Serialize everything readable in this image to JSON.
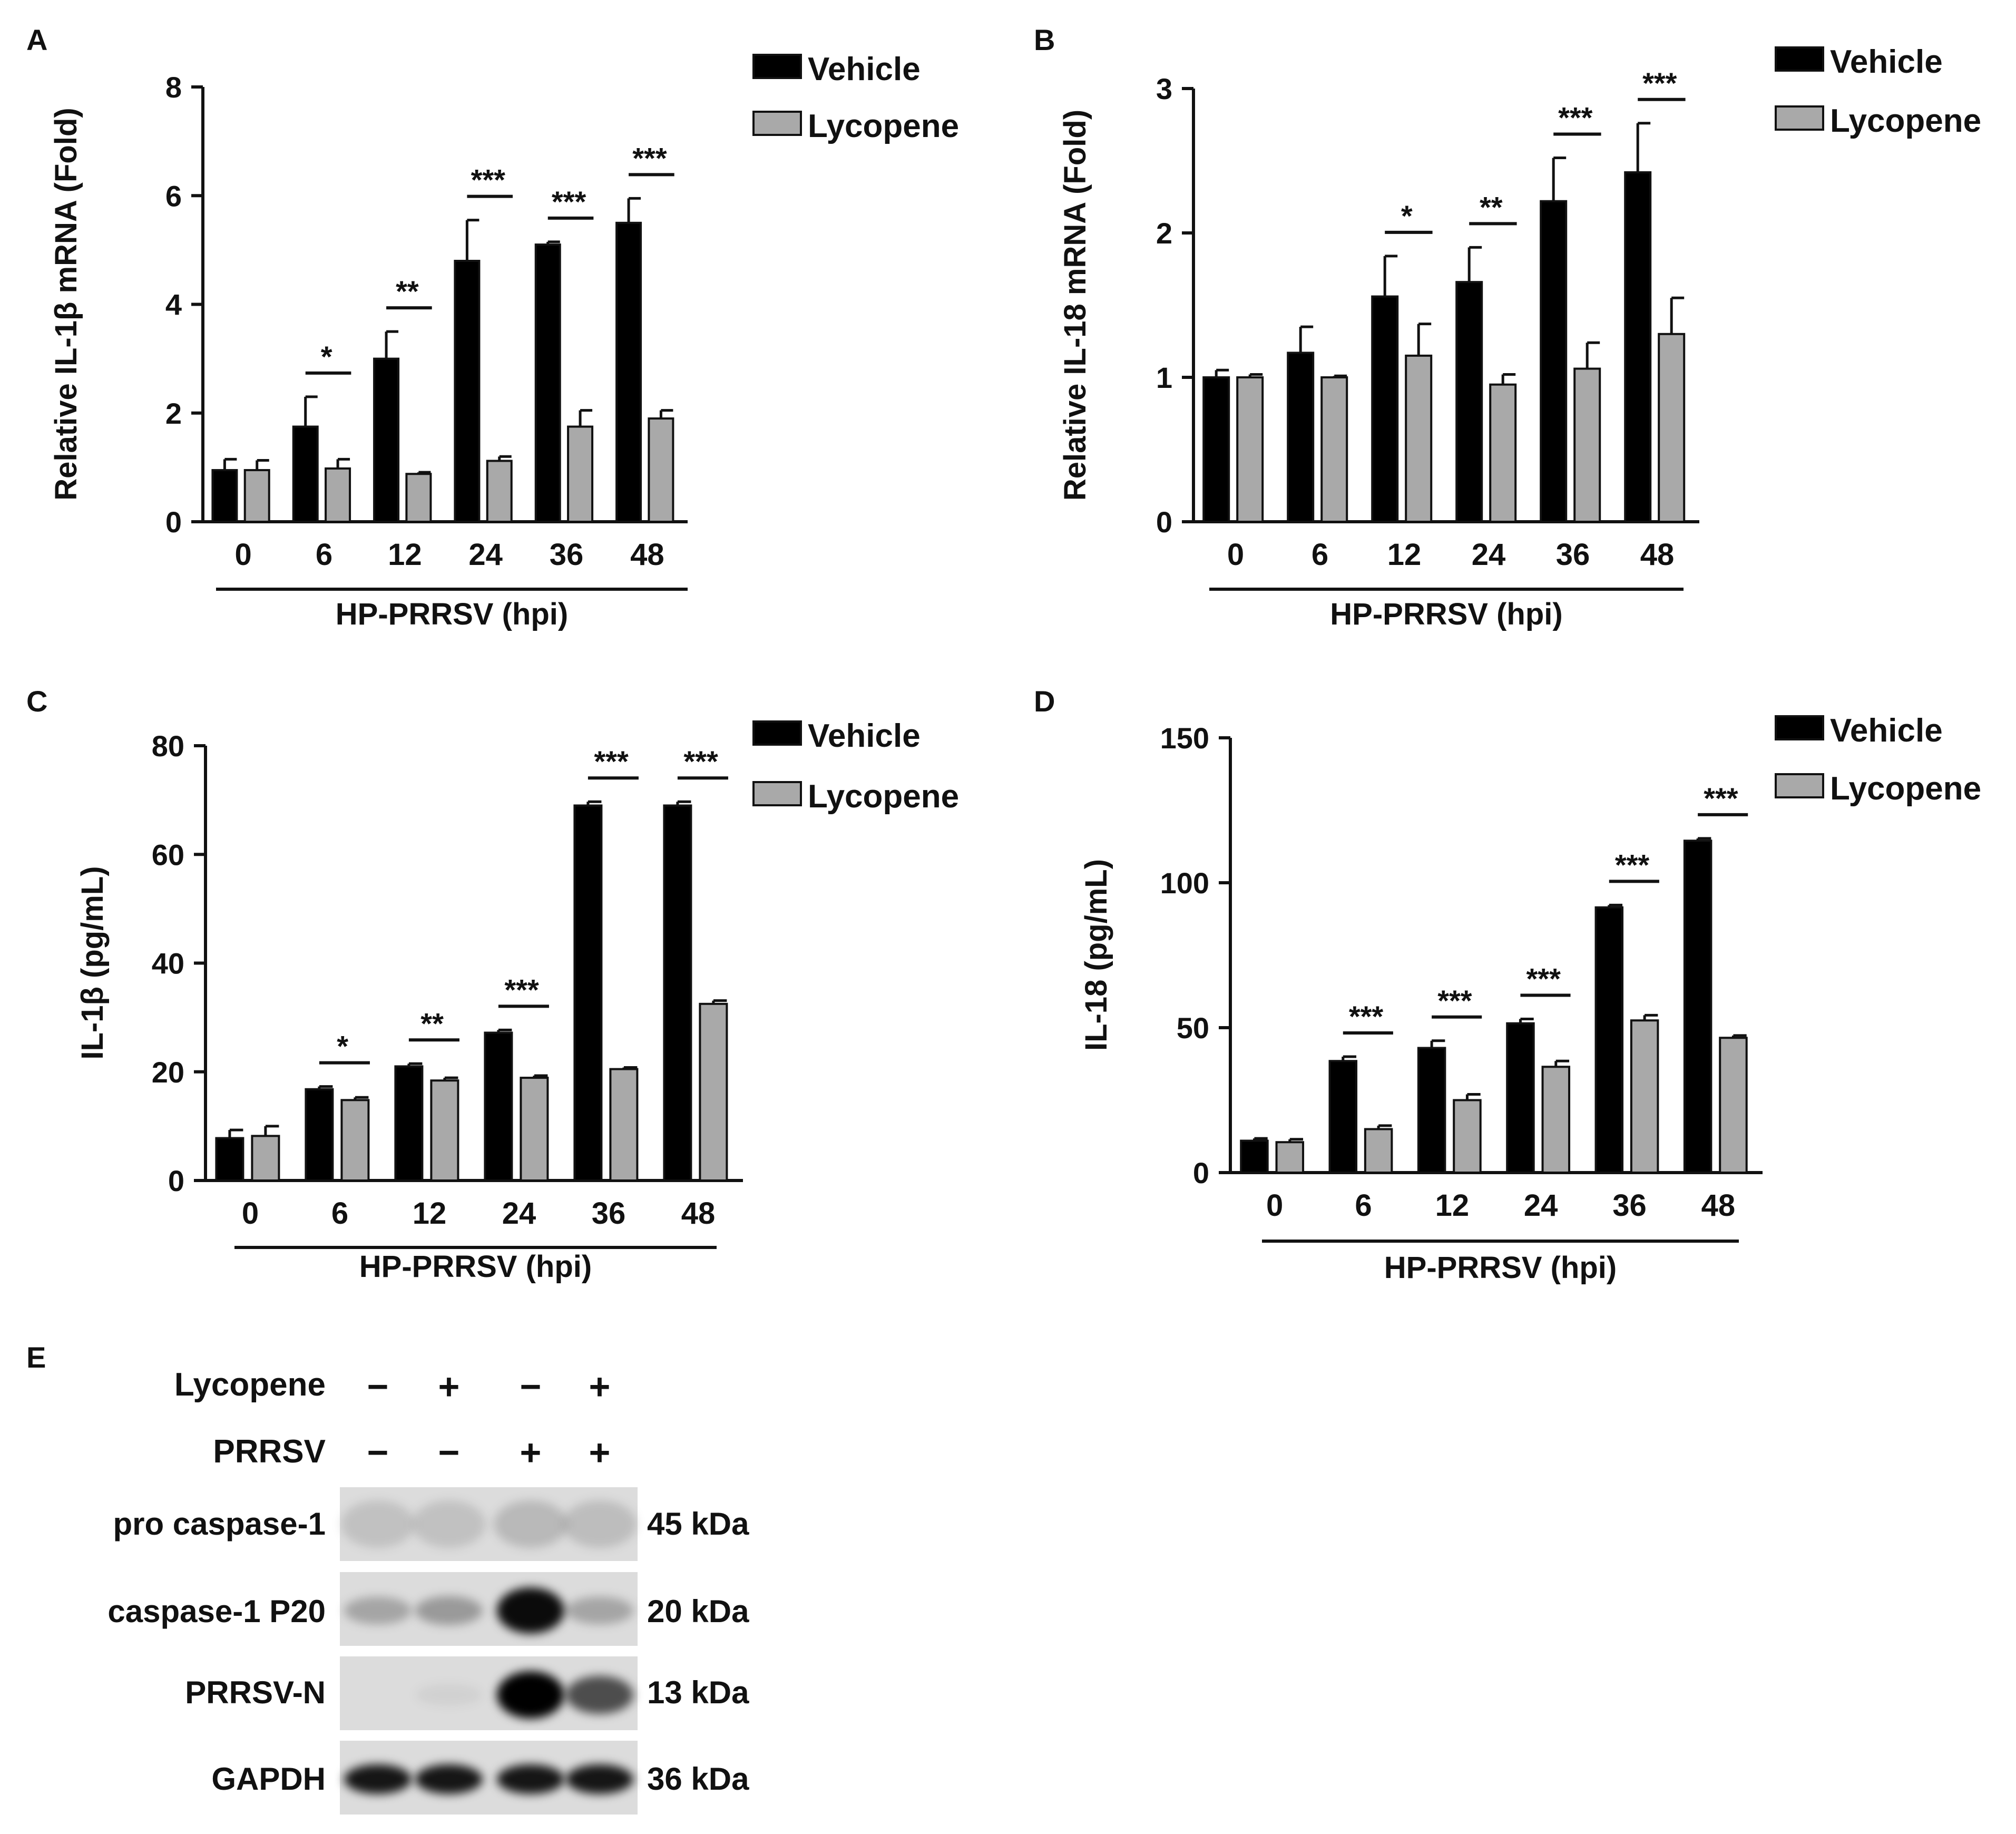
{
  "chart_data": [
    {
      "panel": "A",
      "type": "bar",
      "categories": [
        "0",
        "6",
        "12",
        "24",
        "36",
        "48"
      ],
      "series": [
        {
          "name": "Vehicle",
          "values": [
            0.95,
            1.75,
            3.0,
            4.8,
            5.1,
            5.5
          ],
          "errors": [
            0.2,
            0.55,
            0.5,
            0.75,
            0.05,
            0.45
          ]
        },
        {
          "name": "Lycopene",
          "values": [
            0.95,
            0.98,
            0.88,
            1.12,
            1.75,
            1.9
          ],
          "errors": [
            0.18,
            0.17,
            0.03,
            0.08,
            0.3,
            0.15
          ]
        }
      ],
      "significance": [
        "",
        "*",
        "**",
        "***",
        "***",
        "***"
      ],
      "ylabel": "Relative IL-1β mRNA (Fold)",
      "xlabel": "HP-PRRSV (hpi)",
      "yticks": [
        "0",
        "2",
        "4",
        "6",
        "8"
      ],
      "ylim": [
        0,
        8
      ]
    },
    {
      "panel": "B",
      "type": "bar",
      "categories": [
        "0",
        "6",
        "12",
        "24",
        "36",
        "48"
      ],
      "series": [
        {
          "name": "Vehicle",
          "values": [
            1.0,
            1.17,
            1.56,
            1.66,
            2.22,
            2.42
          ],
          "errors": [
            0.05,
            0.18,
            0.28,
            0.24,
            0.3,
            0.34
          ]
        },
        {
          "name": "Lycopene",
          "values": [
            1.0,
            1.0,
            1.15,
            0.95,
            1.06,
            1.3
          ],
          "errors": [
            0.02,
            0.01,
            0.22,
            0.07,
            0.18,
            0.25
          ]
        }
      ],
      "significance": [
        "",
        "",
        "*",
        "**",
        "***",
        "***"
      ],
      "ylabel": "Relative IL-18 mRNA (Fold)",
      "xlabel": "HP-PRRSV (hpi)",
      "yticks": [
        "0",
        "1",
        "2",
        "3"
      ],
      "ylim": [
        0,
        3
      ]
    },
    {
      "panel": "C",
      "type": "bar",
      "categories": [
        "0",
        "6",
        "12",
        "24",
        "36",
        "48"
      ],
      "series": [
        {
          "name": "Vehicle",
          "values": [
            7.8,
            16.8,
            21.0,
            27.2,
            69.0,
            69.0
          ],
          "errors": [
            1.5,
            0.5,
            0.5,
            0.5,
            0.7,
            0.7
          ]
        },
        {
          "name": "Lycopene",
          "values": [
            8.2,
            14.8,
            18.4,
            18.9,
            20.5,
            32.5
          ],
          "errors": [
            1.8,
            0.5,
            0.5,
            0.4,
            0.3,
            0.6
          ]
        }
      ],
      "significance": [
        "",
        "*",
        "**",
        "***",
        "***",
        "***"
      ],
      "ylabel": "IL-1β (pg/mL)",
      "xlabel": "HP-PRRSV (hpi)",
      "yticks": [
        "0",
        "20",
        "40",
        "60",
        "80"
      ],
      "ylim": [
        0,
        80
      ]
    },
    {
      "panel": "D",
      "type": "bar",
      "categories": [
        "0",
        "6",
        "12",
        "24",
        "36",
        "48"
      ],
      "series": [
        {
          "name": "Vehicle",
          "values": [
            11.0,
            38.5,
            43.0,
            51.5,
            91.5,
            114.5
          ],
          "errors": [
            0.8,
            1.5,
            2.5,
            1.5,
            0.8,
            0.8
          ]
        },
        {
          "name": "Lycopene",
          "values": [
            10.5,
            15.0,
            25.0,
            36.5,
            52.5,
            46.5
          ],
          "errors": [
            1.0,
            1.2,
            2.0,
            2.0,
            1.8,
            0.8
          ]
        }
      ],
      "significance": [
        "",
        "***",
        "***",
        "***",
        "***",
        "***"
      ],
      "ylabel": "IL-18 (pg/mL)",
      "xlabel": "HP-PRRSV (hpi)",
      "yticks": [
        "0",
        "50",
        "100",
        "150"
      ],
      "ylim": [
        0,
        150
      ]
    }
  ],
  "blot": {
    "panel": "E",
    "conditions": [
      {
        "label": "Lycopene",
        "values": [
          "−",
          "+",
          "−",
          "+"
        ]
      },
      {
        "label": "PRRSV",
        "values": [
          "−",
          "−",
          "+",
          "+"
        ]
      }
    ],
    "rows": [
      {
        "label": "pro caspase-1",
        "size": "45 kDa",
        "intensity": [
          0.12,
          0.12,
          0.16,
          0.14
        ]
      },
      {
        "label": "caspase-1 P20",
        "size": "20 kDa",
        "intensity": [
          0.25,
          0.3,
          0.95,
          0.25
        ]
      },
      {
        "label": "PRRSV-N",
        "size": "13 kDa",
        "intensity": [
          0.0,
          0.05,
          1.0,
          0.65
        ]
      },
      {
        "label": "GAPDH",
        "size": "36 kDa",
        "intensity": [
          0.9,
          0.9,
          0.9,
          0.9
        ]
      }
    ]
  },
  "colors": {
    "vehicle": "#000000",
    "lycopene": "#a9a9a9",
    "ink": "#111111",
    "membrane": "#dcdcdc"
  }
}
